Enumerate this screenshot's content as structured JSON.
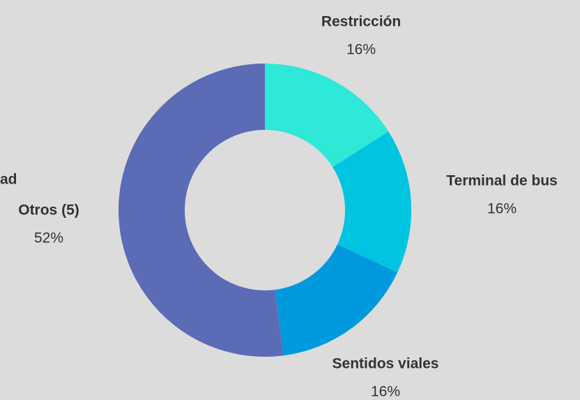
{
  "chart_data": {
    "type": "donut",
    "categories": [
      "Restricción",
      "Terminal de bus",
      "Sentidos viales",
      "Otros (5)"
    ],
    "values": [
      16,
      16,
      16,
      52
    ],
    "value_labels": [
      "16%",
      "16%",
      "16%",
      "52%"
    ],
    "colors": [
      "#2ee8d8",
      "#00c4e0",
      "#0099dd",
      "#5b6bb5"
    ],
    "annotations": [
      "ad"
    ]
  }
}
